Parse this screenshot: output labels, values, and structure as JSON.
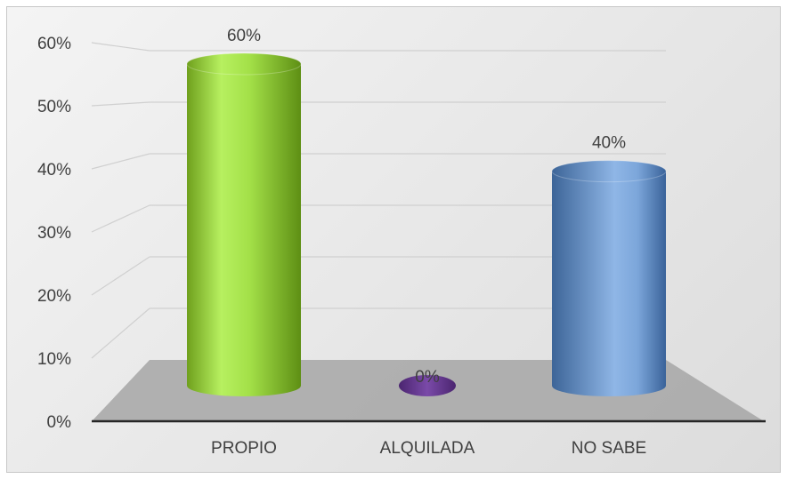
{
  "chart_data": {
    "type": "bar",
    "style": "3d-cylinder",
    "categories": [
      "PROPIO",
      "ALQUILADA",
      "NO SABE"
    ],
    "values": [
      60,
      0,
      40
    ],
    "data_labels": [
      "60%",
      "0%",
      "40%"
    ],
    "ylim": [
      0,
      60
    ],
    "y_ticks": [
      0,
      10,
      20,
      30,
      40,
      50,
      60
    ],
    "y_tick_labels": [
      "0%",
      "10%",
      "20%",
      "30%",
      "40%",
      "50%",
      "60%"
    ],
    "grid": true,
    "legend": "none",
    "bar_colors": [
      "#92d050",
      "#7030a0",
      "#4f81bd"
    ]
  }
}
